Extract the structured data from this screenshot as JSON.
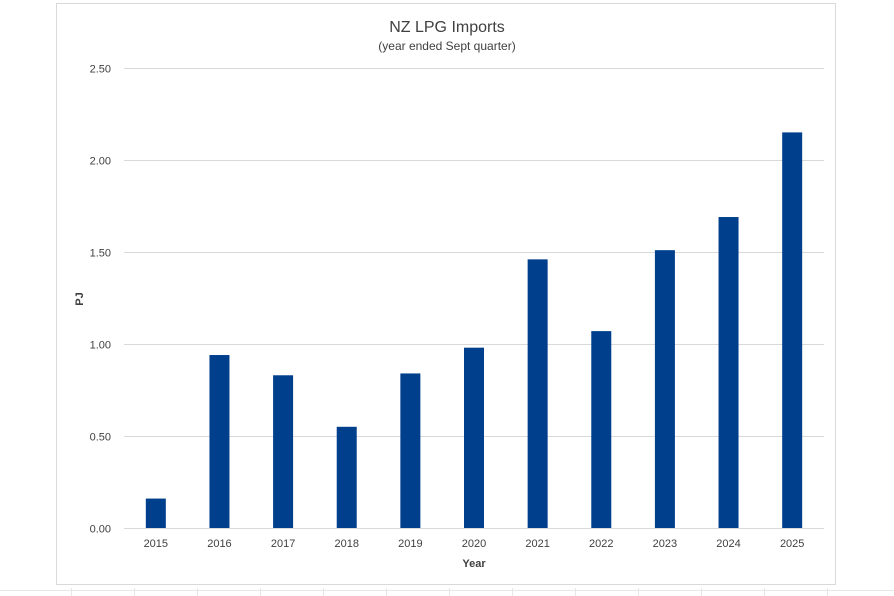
{
  "chart_data": {
    "type": "bar",
    "title": "NZ LPG Imports",
    "subtitle": "(year ended Sept quarter)",
    "xlabel": "Year",
    "ylabel": "PJ",
    "categories": [
      "2015",
      "2016",
      "2017",
      "2018",
      "2019",
      "2020",
      "2021",
      "2022",
      "2023",
      "2024",
      "2025"
    ],
    "values": [
      0.16,
      0.94,
      0.83,
      0.55,
      0.84,
      0.98,
      1.46,
      1.07,
      1.51,
      1.69,
      2.15
    ],
    "ylim": [
      0,
      2.5
    ],
    "yticks": [
      "0.00",
      "0.50",
      "1.00",
      "1.50",
      "2.00",
      "2.50"
    ],
    "ytick_values": [
      0,
      0.5,
      1.0,
      1.5,
      2.0,
      2.5
    ],
    "grid": true,
    "legend": "none",
    "colors": {
      "bar": "#003f8c",
      "grid": "#d9d9d9",
      "text": "#404040"
    }
  }
}
